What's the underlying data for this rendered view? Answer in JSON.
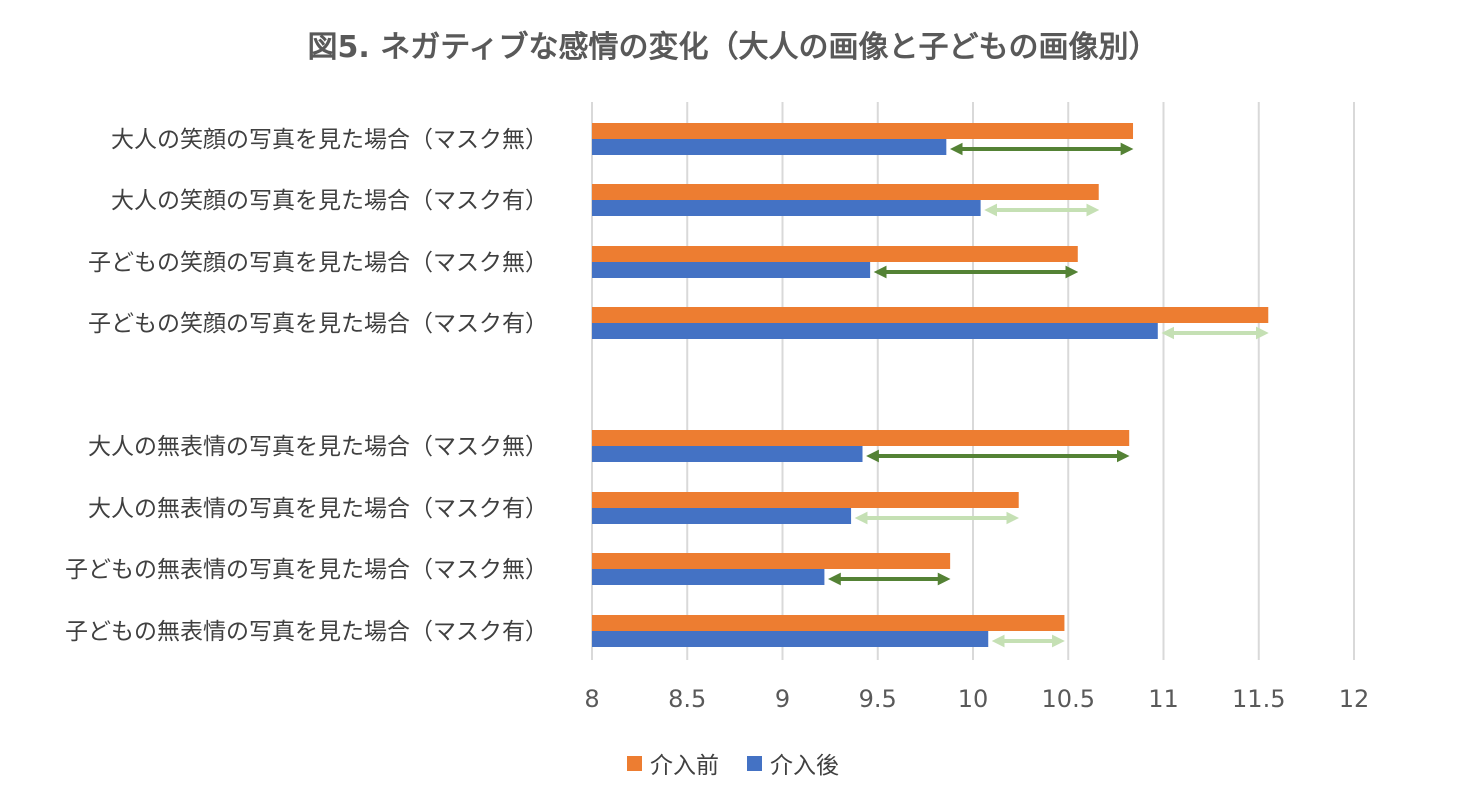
{
  "chart_data": {
    "type": "bar",
    "orientation": "horizontal",
    "title": "図5. ネガティブな感情の変化（大人の画像と子どもの画像別）",
    "xlim": [
      8,
      12
    ],
    "xticks": [
      "8",
      "8.5",
      "9",
      "9.5",
      "10",
      "10.5",
      "11",
      "11.5",
      "12"
    ],
    "categories": [
      "大人の笑顔の写真を見た場合（マスク無）",
      "大人の笑顔の写真を見た場合（マスク有）",
      "子どもの笑顔の写真を見た場合（マスク無）",
      "子どもの笑顔の写真を見た場合（マスク有）",
      "大人の無表情の写真を見た場合（マスク無）",
      "大人の無表情の写真を見た場合（マスク有）",
      "子どもの無表情の写真を見た場合（マスク無）",
      "子どもの無表情の写真を見た場合（マスク有）"
    ],
    "series": [
      {
        "name": "介入前",
        "color": "#ED7D31",
        "values": [
          10.84,
          10.66,
          10.55,
          11.55,
          10.82,
          10.24,
          9.88,
          10.48
        ]
      },
      {
        "name": "介入後",
        "color": "#4472C4",
        "values": [
          9.86,
          10.04,
          9.46,
          10.97,
          9.42,
          9.36,
          9.22,
          10.08
        ]
      }
    ],
    "change_arrows": {
      "dark_color": "#548235",
      "light_color": "#C5E0B4",
      "style": [
        "dark",
        "light",
        "dark",
        "light",
        "dark",
        "light",
        "dark",
        "light"
      ]
    },
    "grid": true,
    "legend_position": "bottom"
  }
}
